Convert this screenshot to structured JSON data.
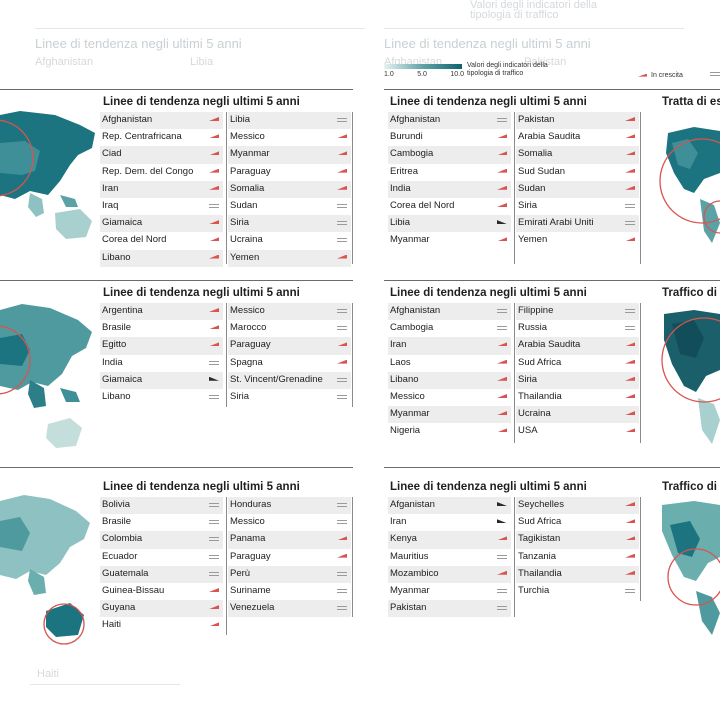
{
  "background": {
    "top_left_heading": "Linee di tendenza negli ultimi 5 anni",
    "top_left_chips": [
      "Afghanistan",
      "Libia"
    ],
    "top_right_heading": "Linee di tendenza negli ultimi 5 anni",
    "top_right_chips": [
      "Afghanistan",
      "Pakistan"
    ],
    "top_legend_text": "Valori degli indicatori della tipologia di traffico",
    "bottom_chip": "Haiti"
  },
  "legend": {
    "ticks": [
      "1.0",
      "5.0",
      "10.0"
    ],
    "label": "Valori degli indicatori della tipologia di traffico",
    "growth_label": "In crescita",
    "colors": {
      "low": "#e8f2f1",
      "mid": "#5fa3a6",
      "high": "#0f6470",
      "growth": "#d9534f"
    }
  },
  "panels": [
    {
      "title": "Linee di tendenza negli ultimi 5 anni",
      "left": [
        {
          "name": "Afghanistan",
          "trend": "up"
        },
        {
          "name": "Rep. Centrafricana",
          "trend": "up"
        },
        {
          "name": "Ciad",
          "trend": "up"
        },
        {
          "name": "Rep. Dem. del Congo",
          "trend": "up"
        },
        {
          "name": "Iran",
          "trend": "up"
        },
        {
          "name": "Iraq",
          "trend": "flat"
        },
        {
          "name": "Giamaica",
          "trend": "up"
        },
        {
          "name": "Corea del Nord",
          "trend": "up"
        },
        {
          "name": "Libano",
          "trend": "up"
        }
      ],
      "right": [
        {
          "name": "Libia",
          "trend": "flat"
        },
        {
          "name": "Messico",
          "trend": "up"
        },
        {
          "name": "Myanmar",
          "trend": "up"
        },
        {
          "name": "Paraguay",
          "trend": "up"
        },
        {
          "name": "Somalia",
          "trend": "up"
        },
        {
          "name": "Sudan",
          "trend": "flat"
        },
        {
          "name": "Siria",
          "trend": "flat"
        },
        {
          "name": "Ucraina",
          "trend": "flat"
        },
        {
          "name": "Yemen",
          "trend": "up"
        }
      ]
    },
    {
      "title": "Linee di tendenza negli ultimi 5 anni",
      "right_heading": "Tratta di es",
      "left": [
        {
          "name": "Afghanistan",
          "trend": "flat"
        },
        {
          "name": "Burundi",
          "trend": "up"
        },
        {
          "name": "Cambogia",
          "trend": "up"
        },
        {
          "name": "Eritrea",
          "trend": "up"
        },
        {
          "name": "India",
          "trend": "up"
        },
        {
          "name": "Corea del Nord",
          "trend": "up"
        },
        {
          "name": "Libia",
          "trend": "down"
        },
        {
          "name": "Myanmar",
          "trend": "up"
        }
      ],
      "right": [
        {
          "name": "Pakistan",
          "trend": "up"
        },
        {
          "name": "Arabia Saudita",
          "trend": "up"
        },
        {
          "name": "Somalia",
          "trend": "up"
        },
        {
          "name": "Sud Sudan",
          "trend": "up"
        },
        {
          "name": "Sudan",
          "trend": "up"
        },
        {
          "name": "Siria",
          "trend": "flat"
        },
        {
          "name": "Emirati Arabi Uniti",
          "trend": "flat"
        },
        {
          "name": "Yemen",
          "trend": "up"
        }
      ]
    },
    {
      "title": "Linee di tendenza negli ultimi 5 anni",
      "left": [
        {
          "name": "Argentina",
          "trend": "up"
        },
        {
          "name": "Brasile",
          "trend": "up"
        },
        {
          "name": "Egitto",
          "trend": "up"
        },
        {
          "name": "India",
          "trend": "flat"
        },
        {
          "name": "Giamaica",
          "trend": "down"
        },
        {
          "name": "Libano",
          "trend": "flat"
        }
      ],
      "right": [
        {
          "name": "Messico",
          "trend": "flat"
        },
        {
          "name": "Marocco",
          "trend": "flat"
        },
        {
          "name": "Paraguay",
          "trend": "up"
        },
        {
          "name": "Spagna",
          "trend": "up"
        },
        {
          "name": "St. Vincent/Grenadine",
          "trend": "flat"
        },
        {
          "name": "Siria",
          "trend": "flat"
        }
      ]
    },
    {
      "title": "Linee di tendenza negli ultimi 5 anni",
      "right_heading": "Traffico di",
      "left": [
        {
          "name": "Afghanistan",
          "trend": "flat"
        },
        {
          "name": "Cambogia",
          "trend": "flat"
        },
        {
          "name": "Iran",
          "trend": "up"
        },
        {
          "name": "Laos",
          "trend": "up"
        },
        {
          "name": "Libano",
          "trend": "up"
        },
        {
          "name": "Messico",
          "trend": "up"
        },
        {
          "name": "Myanmar",
          "trend": "up"
        },
        {
          "name": "Nigeria",
          "trend": "up"
        }
      ],
      "right": [
        {
          "name": "Filippine",
          "trend": "flat"
        },
        {
          "name": "Russia",
          "trend": "flat"
        },
        {
          "name": "Arabia Saudita",
          "trend": "up"
        },
        {
          "name": "Sud Africa",
          "trend": "up"
        },
        {
          "name": "Siria",
          "trend": "up"
        },
        {
          "name": "Thailandia",
          "trend": "up"
        },
        {
          "name": "Ucraina",
          "trend": "up"
        },
        {
          "name": "USA",
          "trend": "up"
        }
      ]
    },
    {
      "title": "Linee di tendenza negli ultimi 5 anni",
      "left": [
        {
          "name": "Bolivia",
          "trend": "flat"
        },
        {
          "name": "Brasile",
          "trend": "flat"
        },
        {
          "name": "Colombia",
          "trend": "flat"
        },
        {
          "name": "Ecuador",
          "trend": "flat"
        },
        {
          "name": "Guatemala",
          "trend": "flat"
        },
        {
          "name": "Guinea-Bissau",
          "trend": "up"
        },
        {
          "name": "Guyana",
          "trend": "up"
        },
        {
          "name": "Haiti",
          "trend": "up"
        }
      ],
      "right": [
        {
          "name": "Honduras",
          "trend": "flat"
        },
        {
          "name": "Messico",
          "trend": "flat"
        },
        {
          "name": "Panama",
          "trend": "up"
        },
        {
          "name": "Paraguay",
          "trend": "up"
        },
        {
          "name": "Perù",
          "trend": "flat"
        },
        {
          "name": "Suriname",
          "trend": "flat"
        },
        {
          "name": "Venezuela",
          "trend": "flat"
        }
      ]
    },
    {
      "title": "Linee di tendenza negli ultimi 5 anni",
      "right_heading": "Traffico di",
      "left": [
        {
          "name": "Afganistan",
          "trend": "down"
        },
        {
          "name": "Iran",
          "trend": "down"
        },
        {
          "name": "Kenya",
          "trend": "up"
        },
        {
          "name": "Mauritius",
          "trend": "flat"
        },
        {
          "name": "Mozambico",
          "trend": "up"
        },
        {
          "name": "Myanmar",
          "trend": "flat"
        },
        {
          "name": "Pakistan",
          "trend": "flat"
        }
      ],
      "right": [
        {
          "name": "Seychelles",
          "trend": "up"
        },
        {
          "name": "Sud Africa",
          "trend": "up"
        },
        {
          "name": "Tagikistan",
          "trend": "up"
        },
        {
          "name": "Tanzania",
          "trend": "up"
        },
        {
          "name": "Thailandia",
          "trend": "up"
        },
        {
          "name": "Turchia",
          "trend": "flat"
        }
      ]
    }
  ]
}
